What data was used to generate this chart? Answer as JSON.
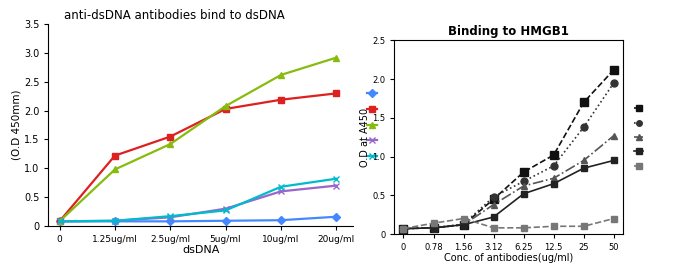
{
  "left": {
    "title": "anti-dsDNA antibodies bind to dsDNA",
    "xlabel": "dsDNA",
    "ylabel": "(O.D 450mm)",
    "x_labels": [
      "0",
      "1.25ug/ml",
      "2.5ug/ml",
      "5ug/ml",
      "10ug/ml",
      "20ug/ml"
    ],
    "x_vals": [
      0,
      1,
      2,
      3,
      4,
      5
    ],
    "series": [
      {
        "color": "#4488ff",
        "marker": "D",
        "linestyle": "-",
        "data": [
          0.08,
          0.08,
          0.08,
          0.09,
          0.1,
          0.16
        ]
      },
      {
        "color": "#dd2020",
        "marker": "s",
        "linestyle": "-",
        "data": [
          0.08,
          1.22,
          1.55,
          2.03,
          2.19,
          2.3
        ]
      },
      {
        "color": "#88bb10",
        "marker": "^",
        "linestyle": "-",
        "data": [
          0.08,
          0.98,
          1.42,
          2.08,
          2.62,
          2.92
        ]
      },
      {
        "color": "#9966cc",
        "marker": "x",
        "linestyle": "-",
        "data": [
          0.08,
          0.09,
          0.15,
          0.3,
          0.6,
          0.7
        ]
      },
      {
        "color": "#00bbcc",
        "marker": "x",
        "linestyle": "-",
        "data": [
          0.08,
          0.09,
          0.17,
          0.27,
          0.68,
          0.82
        ]
      }
    ],
    "ylim": [
      0,
      3.5
    ],
    "yticks": [
      0,
      0.5,
      1.0,
      1.5,
      2.0,
      2.5,
      3.0,
      3.5
    ]
  },
  "right": {
    "title": "Binding to HMGB1",
    "xlabel": "Conc. of antibodies(ug/ml)",
    "ylabel": "O.D at A450",
    "x_labels": [
      "0",
      "0.78",
      "1.56",
      "3.12",
      "6.25",
      "12.5",
      "25",
      "50"
    ],
    "x_vals": [
      0,
      1,
      2,
      3,
      4,
      5,
      6,
      7
    ],
    "series": [
      {
        "color": "#111111",
        "marker": "s",
        "linestyle": "--",
        "markersize": 6,
        "data": [
          0.07,
          0.08,
          0.12,
          0.45,
          0.8,
          1.02,
          1.7,
          2.12
        ]
      },
      {
        "color": "#333333",
        "marker": "o",
        "linestyle": ":",
        "markersize": 5,
        "data": [
          0.07,
          0.08,
          0.13,
          0.48,
          0.68,
          0.88,
          1.38,
          1.95
        ]
      },
      {
        "color": "#555555",
        "marker": "^",
        "linestyle": "-.",
        "markersize": 5,
        "data": [
          0.07,
          0.08,
          0.12,
          0.38,
          0.62,
          0.72,
          0.95,
          1.27
        ]
      },
      {
        "color": "#222222",
        "marker": "s",
        "linestyle": "-",
        "markersize": 5,
        "data": [
          0.07,
          0.08,
          0.12,
          0.22,
          0.52,
          0.65,
          0.85,
          0.95
        ]
      },
      {
        "color": "#777777",
        "marker": "s",
        "linestyle": "--",
        "markersize": 4,
        "data": [
          0.07,
          0.14,
          0.2,
          0.08,
          0.08,
          0.1,
          0.1,
          0.2
        ]
      }
    ],
    "ylim": [
      0,
      2.5
    ],
    "yticks": [
      0,
      0.5,
      1.0,
      1.5,
      2.0,
      2.5
    ]
  },
  "bg_color": "#ffffff",
  "left_bg": "#ffffff",
  "right_bg": "#ffffff"
}
